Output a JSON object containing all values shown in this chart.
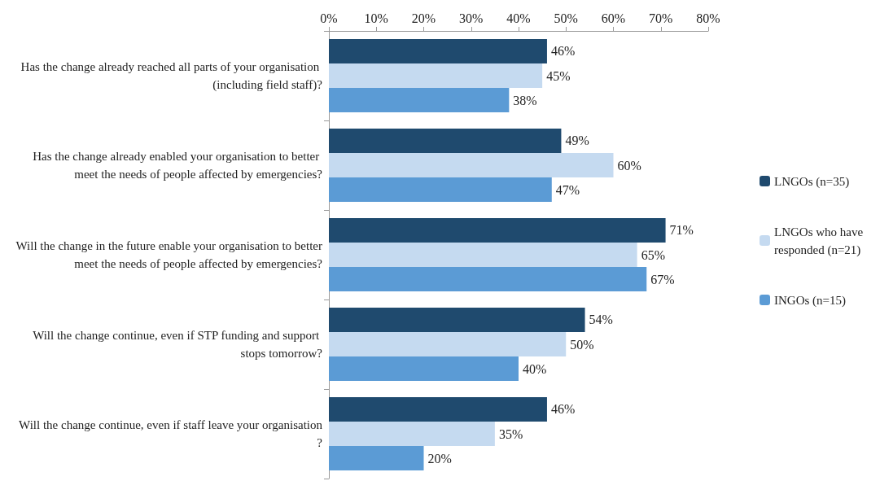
{
  "chart_data": {
    "type": "bar",
    "orientation": "horizontal",
    "categories": [
      "Has the change already reached all parts of your organisation (including field staff)?",
      "Has the change already enabled your organisation to better meet the needs of people affected by emergencies?",
      "Will the change in the future enable your organisation to better meet the needs of people affected by emergencies?",
      "Will the change continue, even if STP funding and support stops tomorrow?",
      "Will the change continue, even if staff leave your organisation?"
    ],
    "series": [
      {
        "name": "LNGOs (n=35)",
        "color": "#1f4a6e",
        "values": [
          46,
          49,
          71,
          54,
          46
        ],
        "value_labels": [
          "46%",
          "49%",
          "71%",
          "54%",
          "46%"
        ]
      },
      {
        "name": "LNGOs who have responded (n=21)",
        "color": "#c5daf0",
        "values": [
          45,
          60,
          65,
          50,
          35
        ],
        "value_labels": [
          "45%",
          "60%",
          "65%",
          "50%",
          "35%"
        ]
      },
      {
        "name": "INGOs (n=15)",
        "color": "#5b9bd5",
        "values": [
          38,
          47,
          67,
          40,
          20
        ],
        "value_labels": [
          "38%",
          "47%",
          "67%",
          "40%",
          "20%"
        ]
      }
    ],
    "xlim": [
      0,
      80
    ],
    "xticks": [
      {
        "value": 0,
        "label": "0%"
      },
      {
        "value": 10,
        "label": "10%"
      },
      {
        "value": 20,
        "label": "20%"
      },
      {
        "value": 30,
        "label": "30%"
      },
      {
        "value": 40,
        "label": "40%"
      },
      {
        "value": 50,
        "label": "50%"
      },
      {
        "value": 60,
        "label": "60%"
      },
      {
        "value": 70,
        "label": "70%"
      },
      {
        "value": 80,
        "label": "80%"
      }
    ],
    "grid": false,
    "legend": "right"
  }
}
